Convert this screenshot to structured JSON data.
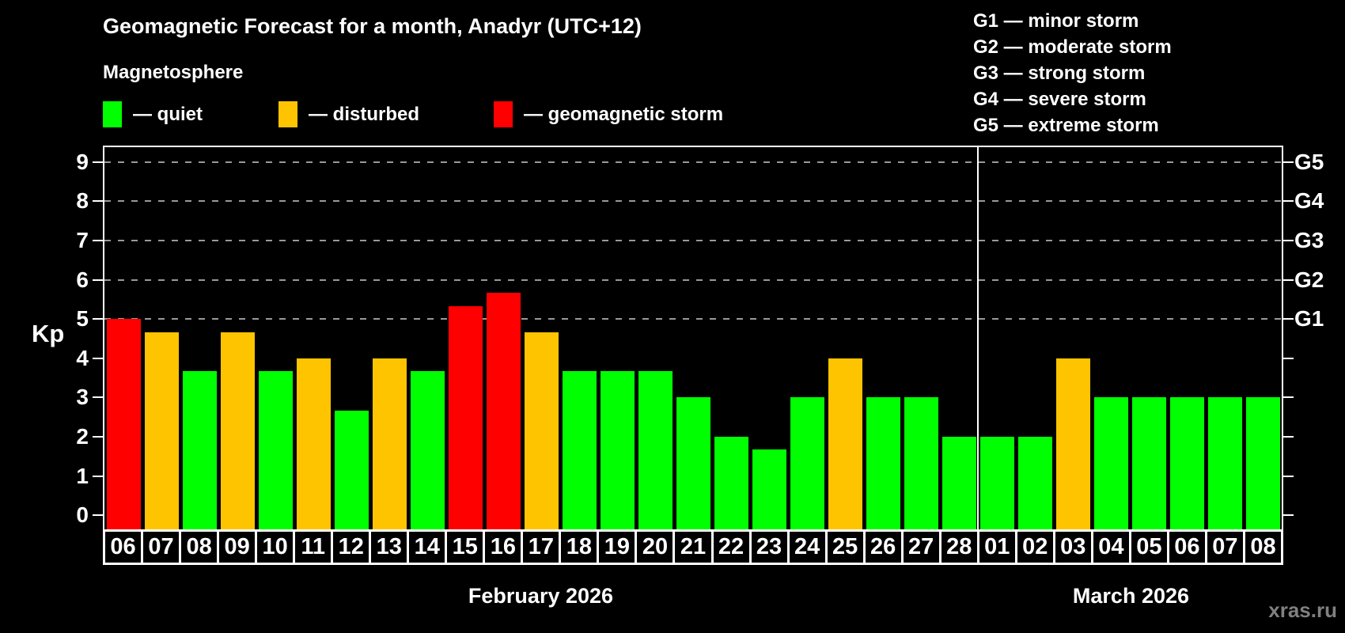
{
  "title": "Geomagnetic Forecast for a month, Anadyr (UTC+12)",
  "subtitle": "Magnetosphere",
  "legend": {
    "quiet_label": "— quiet",
    "disturbed_label": "— disturbed",
    "storm_label": "— geomagnetic storm"
  },
  "g_scale": [
    "G1 — minor storm",
    "G2 — moderate storm",
    "G3 — strong storm",
    "G4 — severe storm",
    "G5 — extreme storm"
  ],
  "watermark": "xras.ru",
  "colors": {
    "quiet": "#00ff00",
    "disturbed": "#ffc400",
    "storm": "#ff0000",
    "background": "#000000",
    "grid": "#999999",
    "text": "#ffffff",
    "watermark_text": "#808080"
  },
  "chart_data": {
    "type": "bar",
    "ylabel": "Kp",
    "ylim": [
      0,
      9
    ],
    "yticks": [
      9,
      8,
      7,
      6,
      5,
      4,
      3,
      2,
      1,
      0
    ],
    "gridlines_at_kp": [
      9,
      8,
      7,
      6,
      5
    ],
    "grid_style": "dashed, only at G-storm levels",
    "legend_position": "top-left",
    "g_levels": [
      {
        "label": "G5",
        "kp": 9
      },
      {
        "label": "G4",
        "kp": 8
      },
      {
        "label": "G3",
        "kp": 7
      },
      {
        "label": "G2",
        "kp": 6
      },
      {
        "label": "G1",
        "kp": 5
      }
    ],
    "months": [
      {
        "label": "February 2026",
        "days": 23
      },
      {
        "label": "March 2026",
        "days": 8
      }
    ],
    "categories": [
      "06",
      "07",
      "08",
      "09",
      "10",
      "11",
      "12",
      "13",
      "14",
      "15",
      "16",
      "17",
      "18",
      "19",
      "20",
      "21",
      "22",
      "23",
      "24",
      "25",
      "26",
      "27",
      "28",
      "01",
      "02",
      "03",
      "04",
      "05",
      "06",
      "07",
      "08"
    ],
    "values": [
      5.0,
      4.67,
      3.67,
      4.67,
      3.67,
      4.0,
      2.67,
      4.0,
      3.67,
      5.33,
      5.67,
      4.67,
      3.67,
      3.67,
      3.67,
      3.0,
      2.0,
      1.67,
      3.0,
      4.0,
      3.0,
      3.0,
      2.0,
      2.0,
      2.0,
      4.0,
      3.0,
      3.0,
      3.0,
      3.0,
      3.0
    ],
    "levels": [
      "storm",
      "disturbed",
      "quiet",
      "disturbed",
      "quiet",
      "disturbed",
      "quiet",
      "disturbed",
      "quiet",
      "storm",
      "storm",
      "disturbed",
      "quiet",
      "quiet",
      "quiet",
      "quiet",
      "quiet",
      "quiet",
      "quiet",
      "disturbed",
      "quiet",
      "quiet",
      "quiet",
      "quiet",
      "quiet",
      "disturbed",
      "quiet",
      "quiet",
      "quiet",
      "quiet",
      "quiet"
    ]
  }
}
